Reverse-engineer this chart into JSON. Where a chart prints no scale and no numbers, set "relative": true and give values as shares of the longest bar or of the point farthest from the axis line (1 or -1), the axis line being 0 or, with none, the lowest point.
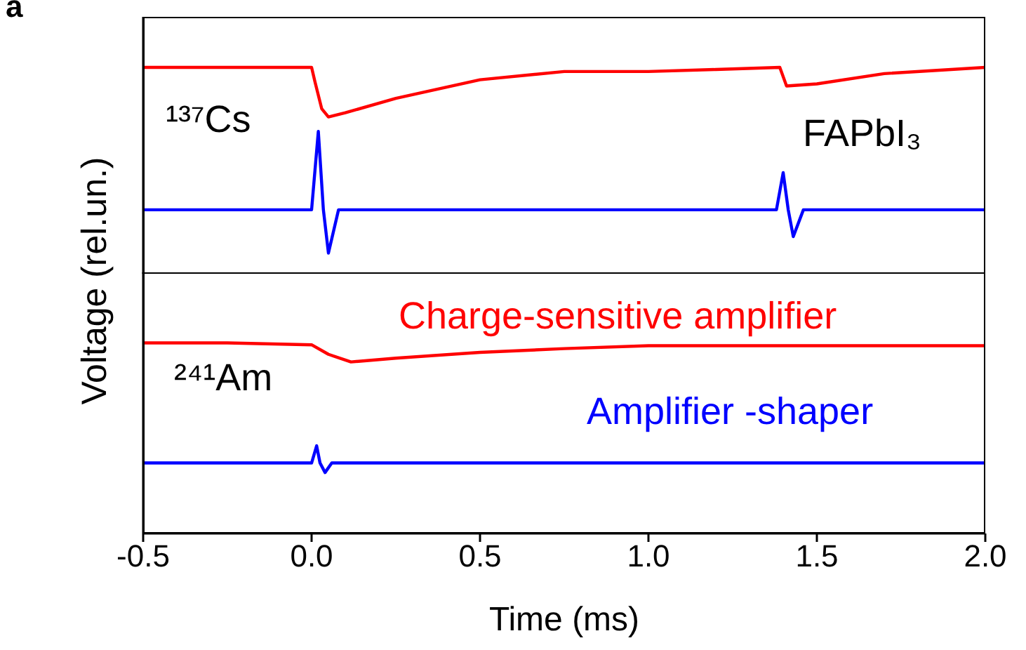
{
  "chart_data": [
    {
      "type": "line",
      "title": "a",
      "ylabel": "Voltage (rel.un.)",
      "annotations": [
        "¹³⁷Cs",
        "FAPbI₃"
      ],
      "relative": true,
      "xlim": [
        -0.5,
        2.0
      ],
      "tick_labels": false,
      "series": [
        {
          "color": "#ff0000",
          "x": [
            -0.5,
            -0.25,
            0.0,
            0.01,
            0.03,
            0.05,
            0.1,
            0.25,
            0.5,
            0.75,
            1.0,
            1.2,
            1.39,
            1.41,
            1.5,
            1.7,
            2.0
          ],
          "values": [
            1.0,
            1.0,
            1.0,
            0.93,
            0.8,
            0.76,
            0.78,
            0.85,
            0.94,
            0.98,
            0.98,
            0.99,
            1.0,
            0.91,
            0.92,
            0.97,
            1.0
          ]
        },
        {
          "color": "#0000ff",
          "x": [
            -0.5,
            0.0,
            0.01,
            0.02,
            0.035,
            0.05,
            0.08,
            1.38,
            1.39,
            1.4,
            1.415,
            1.43,
            1.46,
            2.0
          ],
          "values": [
            0.31,
            0.31,
            0.5,
            0.69,
            0.31,
            0.1,
            0.31,
            0.31,
            0.4,
            0.49,
            0.31,
            0.18,
            0.31,
            0.31
          ]
        }
      ]
    },
    {
      "type": "line",
      "xlabel": "Time (ms)",
      "annotations": [
        "²⁴¹Am"
      ],
      "relative": true,
      "xlim": [
        -0.5,
        2.0
      ],
      "xticks": [
        -0.5,
        {
          "value": 0,
          "label": "0.0"
        },
        0.5,
        {
          "value": 1,
          "label": "1.0"
        },
        1.5,
        {
          "value": 2,
          "label": "2.0"
        }
      ],
      "tick_labels": "x",
      "series": [
        {
          "name": "Charge-sensitive amplifier",
          "color": "#ff0000",
          "x": [
            -0.5,
            -0.25,
            0.0,
            0.05,
            0.117,
            0.25,
            0.5,
            0.75,
            1.0,
            1.5,
            2.0
          ],
          "values": [
            1.0,
            1.0,
            0.99,
            0.94,
            0.9,
            0.92,
            0.95,
            0.97,
            0.985,
            0.985,
            0.985
          ]
        },
        {
          "name": "Amplifier -shaper",
          "color": "#0000ff",
          "x": [
            -0.5,
            0.0,
            0.015,
            0.025,
            0.04,
            0.06,
            2.0
          ],
          "values": [
            0.37,
            0.37,
            0.46,
            0.37,
            0.32,
            0.37,
            0.37
          ]
        }
      ]
    }
  ]
}
